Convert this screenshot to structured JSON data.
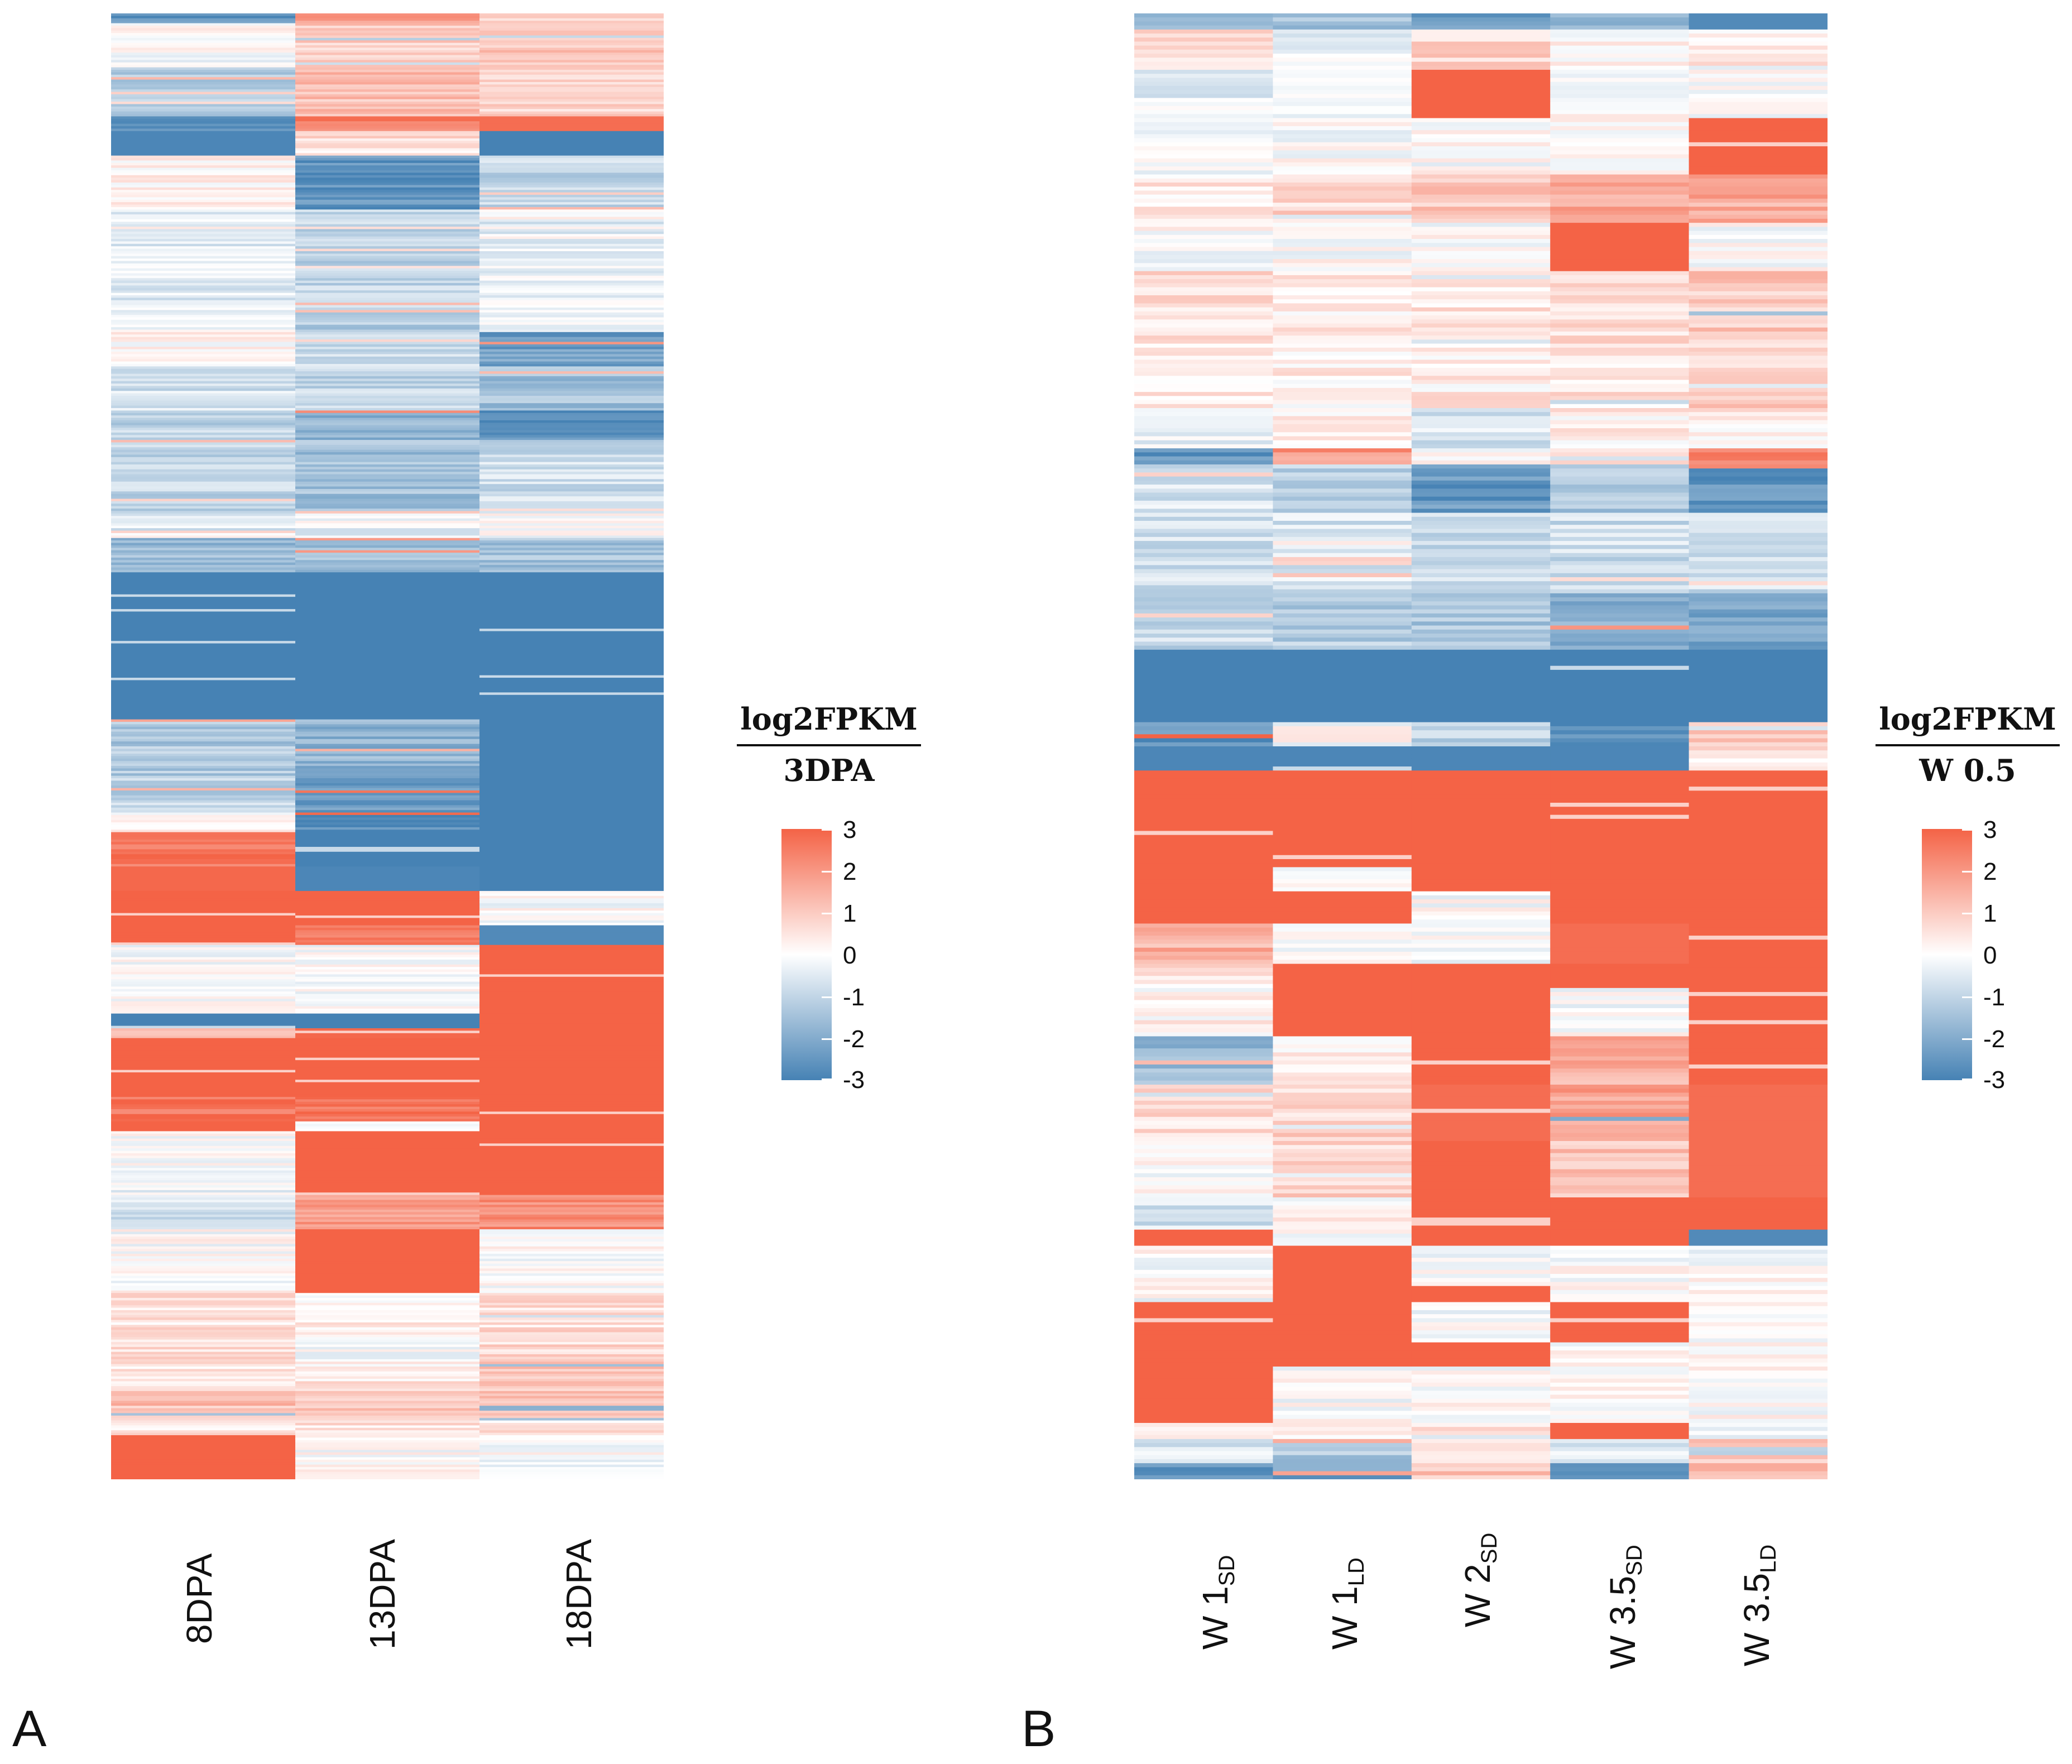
{
  "figure": {
    "panels": [
      {
        "id": "A",
        "letter": "A",
        "legend": {
          "title_num": "log2FPKM",
          "title_den": "3DPA"
        }
      },
      {
        "id": "B",
        "letter": "B",
        "legend": {
          "title_num": "log2FPKM",
          "title_den": "W 0.5"
        }
      }
    ]
  },
  "colors": {
    "low": "#4682B4",
    "mid": "#FFFFFF",
    "high": "#F46346"
  },
  "chart_data": [
    {
      "type": "heatmap",
      "panel": "A",
      "title": "",
      "value_label": "log2FPKM / 3DPA",
      "zlim": [
        -3,
        3
      ],
      "legend_ticks": [
        "3",
        "2",
        "1",
        "0",
        "-1",
        "-2",
        "-3"
      ],
      "columns": [
        {
          "label": "8DPA"
        },
        {
          "label": "13DPA"
        },
        {
          "label": "18DPA"
        }
      ],
      "row_segments": [
        {
          "rows": 4,
          "values": [
            -2.6,
            2.0,
            0.8
          ]
        },
        {
          "rows": 18,
          "values": [
            0.0,
            1.0,
            1.0
          ]
        },
        {
          "rows": 20,
          "values": [
            -1.2,
            1.2,
            0.9
          ]
        },
        {
          "rows": 6,
          "values": [
            -2.5,
            2.5,
            2.8
          ]
        },
        {
          "rows": 10,
          "values": [
            -2.9,
            0.6,
            -3.0
          ]
        },
        {
          "rows": 22,
          "values": [
            0.3,
            -2.6,
            -1.0
          ]
        },
        {
          "rows": 40,
          "values": [
            -0.5,
            -1.0,
            -0.4
          ]
        },
        {
          "rows": 10,
          "values": [
            0.0,
            -1.2,
            0.0
          ]
        },
        {
          "rows": 14,
          "values": [
            0.2,
            -0.8,
            -2.3
          ]
        },
        {
          "rows": 18,
          "values": [
            -0.7,
            -1.0,
            -1.5
          ]
        },
        {
          "rows": 12,
          "values": [
            -1.0,
            -1.8,
            -2.7
          ]
        },
        {
          "rows": 30,
          "values": [
            -1.0,
            -1.5,
            -0.8
          ]
        },
        {
          "rows": 10,
          "values": [
            -0.5,
            -0.3,
            0.0
          ]
        },
        {
          "rows": 14,
          "values": [
            -1.6,
            -1.6,
            -1.5
          ]
        },
        {
          "rows": 60,
          "values": [
            -3.0,
            -3.0,
            -3.0
          ]
        },
        {
          "rows": 24,
          "values": [
            -1.3,
            -1.8,
            -3.0
          ]
        },
        {
          "rows": 14,
          "values": [
            -1.0,
            -2.5,
            -3.0
          ]
        },
        {
          "rows": 8,
          "values": [
            0.0,
            -2.7,
            -3.0
          ]
        },
        {
          "rows": 14,
          "values": [
            2.7,
            -3.0,
            -3.0
          ]
        },
        {
          "rows": 10,
          "values": [
            2.9,
            -2.9,
            -3.0
          ]
        },
        {
          "rows": 14,
          "values": [
            3.0,
            3.0,
            0.0
          ]
        },
        {
          "rows": 8,
          "values": [
            3.0,
            2.6,
            -2.8
          ]
        },
        {
          "rows": 14,
          "values": [
            0.0,
            0.0,
            3.0
          ]
        },
        {
          "rows": 14,
          "values": [
            0.0,
            0.0,
            3.0
          ]
        },
        {
          "rows": 6,
          "values": [
            -3.0,
            -3.0,
            3.0
          ]
        },
        {
          "rows": 4,
          "values": [
            1.2,
            2.9,
            3.0
          ]
        },
        {
          "rows": 24,
          "values": [
            3.0,
            3.0,
            3.0
          ]
        },
        {
          "rows": 10,
          "values": [
            2.7,
            2.7,
            3.0
          ]
        },
        {
          "rows": 4,
          "values": [
            3.0,
            0.0,
            3.0
          ]
        },
        {
          "rows": 14,
          "values": [
            0.0,
            3.0,
            3.0
          ]
        },
        {
          "rows": 12,
          "values": [
            -0.3,
            3.0,
            3.0
          ]
        },
        {
          "rows": 14,
          "values": [
            -0.7,
            1.9,
            2.2
          ]
        },
        {
          "rows": 26,
          "values": [
            0.0,
            3.0,
            0.0
          ]
        },
        {
          "rows": 14,
          "values": [
            0.5,
            0.3,
            0.6
          ]
        },
        {
          "rows": 14,
          "values": [
            0.6,
            0.0,
            0.7
          ]
        },
        {
          "rows": 12,
          "values": [
            0.4,
            0.4,
            1.0
          ]
        },
        {
          "rows": 12,
          "values": [
            1.2,
            1.0,
            1.4
          ]
        },
        {
          "rows": 6,
          "values": [
            0.5,
            0.5,
            0.5
          ]
        },
        {
          "rows": 18,
          "values": [
            3.0,
            0.0,
            0.0
          ]
        }
      ]
    },
    {
      "type": "heatmap",
      "panel": "B",
      "title": "",
      "value_label": "log2FPKM / W 0.5",
      "zlim": [
        -3,
        3
      ],
      "legend_ticks": [
        "3",
        "2",
        "1",
        "0",
        "-1",
        "-2",
        "-3"
      ],
      "columns": [
        {
          "label": "W 1",
          "sub": "SD"
        },
        {
          "label": "W 1",
          "sub": "LD"
        },
        {
          "label": "W 2",
          "sub": "SD"
        },
        {
          "label": "W 3.5",
          "sub": "SD"
        },
        {
          "label": "W 3.5",
          "sub": "LD"
        }
      ],
      "row_segments": [
        {
          "rows": 4,
          "values": [
            -1.8,
            -1.5,
            -2.4,
            -1.5,
            -2.8
          ]
        },
        {
          "rows": 10,
          "values": [
            0.6,
            -0.2,
            0.8,
            0.2,
            0.4
          ]
        },
        {
          "rows": 12,
          "values": [
            -0.4,
            -0.2,
            3.0,
            0.0,
            0.0
          ]
        },
        {
          "rows": 14,
          "values": [
            0.0,
            0.0,
            0.0,
            0.0,
            3.0
          ]
        },
        {
          "rows": 12,
          "values": [
            0.4,
            0.8,
            1.0,
            1.6,
            1.6
          ]
        },
        {
          "rows": 12,
          "values": [
            0.0,
            0.0,
            0.0,
            3.0,
            0.0
          ]
        },
        {
          "rows": 18,
          "values": [
            0.6,
            0.4,
            0.5,
            0.6,
            1.0
          ]
        },
        {
          "rows": 16,
          "values": [
            0.4,
            0.3,
            0.4,
            0.5,
            0.9
          ]
        },
        {
          "rows": 10,
          "values": [
            -0.4,
            0.3,
            -0.6,
            0.3,
            0.4
          ]
        },
        {
          "rows": 4,
          "values": [
            -2.5,
            2.0,
            0.0,
            0.5,
            2.4
          ]
        },
        {
          "rows": 12,
          "values": [
            -0.6,
            -1.2,
            -2.5,
            -1.3,
            -2.6
          ]
        },
        {
          "rows": 20,
          "values": [
            -0.8,
            -0.6,
            -0.8,
            -0.8,
            -0.8
          ]
        },
        {
          "rows": 14,
          "values": [
            -0.9,
            -1.2,
            -1.4,
            -1.8,
            -2.2
          ]
        },
        {
          "rows": 18,
          "values": [
            -3.0,
            -3.0,
            -3.0,
            -3.0,
            -3.0
          ]
        },
        {
          "rows": 6,
          "values": [
            -2.5,
            0.0,
            -1.0,
            -2.6,
            1.0
          ]
        },
        {
          "rows": 6,
          "values": [
            -2.9,
            -2.9,
            -2.9,
            -2.9,
            0.5
          ]
        },
        {
          "rows": 24,
          "values": [
            3.0,
            3.0,
            3.0,
            3.0,
            3.0
          ]
        },
        {
          "rows": 6,
          "values": [
            3.0,
            0.0,
            3.0,
            3.0,
            3.0
          ]
        },
        {
          "rows": 8,
          "values": [
            3.0,
            3.0,
            0.0,
            3.0,
            3.0
          ]
        },
        {
          "rows": 10,
          "values": [
            1.5,
            0.0,
            0.0,
            2.8,
            3.0
          ]
        },
        {
          "rows": 6,
          "values": [
            0.5,
            3.0,
            3.0,
            3.0,
            3.0
          ]
        },
        {
          "rows": 12,
          "values": [
            0.2,
            3.0,
            3.0,
            0.0,
            3.0
          ]
        },
        {
          "rows": 12,
          "values": [
            -1.6,
            0.4,
            3.0,
            1.5,
            3.0
          ]
        },
        {
          "rows": 14,
          "values": [
            0.6,
            0.8,
            2.8,
            1.8,
            2.8
          ]
        },
        {
          "rows": 14,
          "values": [
            0.0,
            0.8,
            3.0,
            1.2,
            2.8
          ]
        },
        {
          "rows": 8,
          "values": [
            -0.7,
            0.2,
            3.0,
            3.0,
            3.0
          ]
        },
        {
          "rows": 4,
          "values": [
            3.0,
            0.0,
            3.0,
            3.0,
            -2.8
          ]
        },
        {
          "rows": 10,
          "values": [
            0.0,
            3.0,
            0.0,
            0.0,
            0.0
          ]
        },
        {
          "rows": 4,
          "values": [
            0.0,
            3.0,
            3.0,
            0.0,
            0.0
          ]
        },
        {
          "rows": 10,
          "values": [
            3.0,
            3.0,
            0.0,
            3.0,
            0.0
          ]
        },
        {
          "rows": 6,
          "values": [
            3.0,
            3.0,
            3.0,
            0.0,
            0.0
          ]
        },
        {
          "rows": 14,
          "values": [
            3.0,
            0.0,
            0.0,
            0.0,
            0.0
          ]
        },
        {
          "rows": 4,
          "values": [
            0.0,
            0.0,
            0.6,
            3.0,
            0.0
          ]
        },
        {
          "rows": 6,
          "values": [
            -0.6,
            -1.3,
            0.8,
            -0.4,
            1.0
          ]
        },
        {
          "rows": 4,
          "values": [
            -2.4,
            -2.2,
            1.2,
            -2.2,
            1.4
          ]
        }
      ]
    }
  ]
}
